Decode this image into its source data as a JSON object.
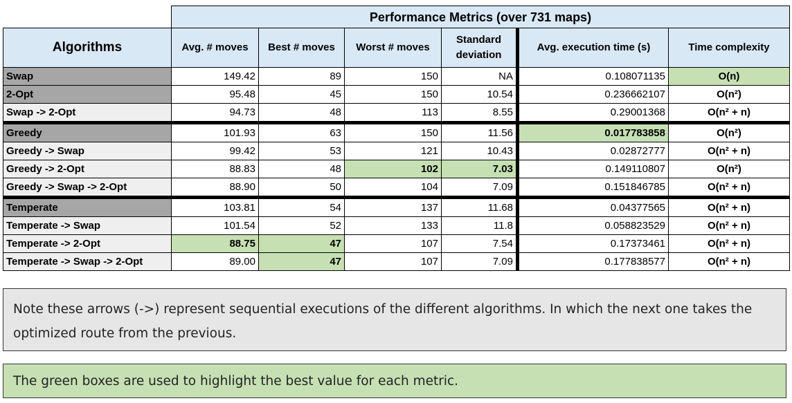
{
  "table": {
    "super_header": "Performance Metrics (over 731 maps)",
    "algorithms_header": "Algorithms",
    "columns": {
      "avg_moves": "Avg. # moves",
      "best_moves": "Best # moves",
      "worst_moves": "Worst # moves",
      "std_line1": "Standard",
      "std_line2": "deviation",
      "avg_time": "Avg. execution time (s)",
      "complexity": "Time complexity"
    },
    "rows": [
      {
        "name": "Swap",
        "avg": "149.42",
        "best": "89",
        "worst": "150",
        "std": "NA",
        "time": "0.108071135",
        "cx": "O(n)"
      },
      {
        "name": "2-Opt",
        "avg": "95.48",
        "best": "45",
        "worst": "150",
        "std": "10.54",
        "time": "0.236662107",
        "cx": "O(n²)"
      },
      {
        "name": "Swap -> 2-Opt",
        "avg": "94.73",
        "best": "48",
        "worst": "113",
        "std": "8.55",
        "time": "0.29001368",
        "cx": "O(n² + n)"
      },
      {
        "name": "Greedy",
        "avg": "101.93",
        "best": "63",
        "worst": "150",
        "std": "11.56",
        "time": "0.017783858",
        "cx": "O(n²)"
      },
      {
        "name": "Greedy -> Swap",
        "avg": "99.42",
        "best": "53",
        "worst": "121",
        "std": "10.43",
        "time": "0.02872777",
        "cx": "O(n² + n)"
      },
      {
        "name": "Greedy -> 2-Opt",
        "avg": "88.83",
        "best": "48",
        "worst": "102",
        "std": "7.03",
        "time": "0.149110807",
        "cx": "O(n²)"
      },
      {
        "name": "Greedy -> Swap -> 2-Opt",
        "avg": "88.90",
        "best": "50",
        "worst": "104",
        "std": "7.09",
        "time": "0.151846785",
        "cx": "O(n² + n)"
      },
      {
        "name": "Temperate",
        "avg": "103.81",
        "best": "54",
        "worst": "137",
        "std": "11.68",
        "time": "0.04377565",
        "cx": "O(n² + n)"
      },
      {
        "name": "Temperate -> Swap",
        "avg": "101.54",
        "best": "52",
        "worst": "133",
        "std": "11.8",
        "time": "0.058823529",
        "cx": "O(n² + n)"
      },
      {
        "name": "Temperate -> 2-Opt",
        "avg": "88.75",
        "best": "47",
        "worst": "107",
        "std": "7.54",
        "time": "0.17373461",
        "cx": "O(n² + n)"
      },
      {
        "name": "Temperate -> Swap -> 2-Opt",
        "avg": "89.00",
        "best": "47",
        "worst": "107",
        "std": "7.09",
        "time": "0.177838577",
        "cx": "O(n² + n)"
      }
    ]
  },
  "notes": {
    "sequence_note": "Note these arrows (->) represent sequential executions of the different algorithms. In which the next one takes the optimized route from the previous.",
    "green_note": "The green boxes are used to highlight the best value for each metric."
  },
  "colors": {
    "header_blue": "#d9e8f5",
    "highlight_green": "#c6e0b4",
    "base_algorithm_grey": "#a6a6a6"
  }
}
